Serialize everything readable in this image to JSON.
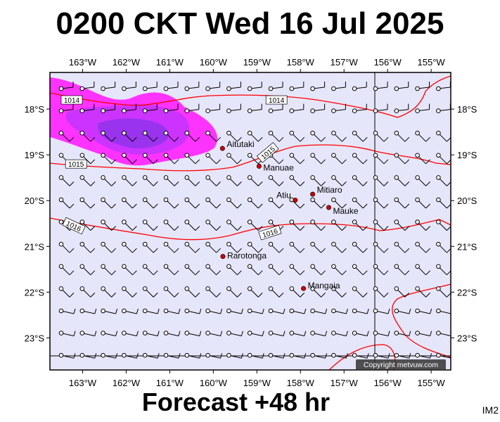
{
  "title": "0200 CKT Wed 16 Jul 2025",
  "forecast_label": "Forecast +48 hr",
  "image_code": "IM2",
  "copyright": "Copyright metvuw.com",
  "colors": {
    "map_background": "#e6e6fa",
    "isobar": "#ff0000",
    "rain_light": "#ff33ff",
    "rain_medium": "#cc33ff",
    "rain_heavy": "#9933ee",
    "island_marker": "#cc0000"
  },
  "longitude_labels": [
    "163°W",
    "162°W",
    "161°W",
    "160°W",
    "159°W",
    "158°W",
    "157°W",
    "156°W",
    "155°W"
  ],
  "latitude_labels": [
    "18°S",
    "19°S",
    "20°S",
    "21°S",
    "22°S",
    "23°S"
  ],
  "reference_lines": {
    "longitude": "156°W",
    "latitude": "23.5°S"
  },
  "islands": [
    {
      "name": "Aitutaki",
      "lon": -159.79,
      "lat": -18.86
    },
    {
      "name": "Manuae",
      "lon": -158.95,
      "lat": -19.25
    },
    {
      "name": "Atiu",
      "lon": -158.12,
      "lat": -19.99
    },
    {
      "name": "Mitiaro",
      "lon": -157.72,
      "lat": -19.86
    },
    {
      "name": "Mauke",
      "lon": -157.35,
      "lat": -20.15
    },
    {
      "name": "Rarotonga",
      "lon": -159.78,
      "lat": -21.22
    },
    {
      "name": "Mangaia",
      "lon": -157.93,
      "lat": -21.92
    }
  ],
  "isobars": [
    {
      "label": "1014",
      "label_positions": [
        {
          "lon": -163.25,
          "lat": -17.8
        },
        {
          "lon": -158.55,
          "lat": -17.8
        }
      ]
    },
    {
      "label": "1015",
      "label_positions": [
        {
          "lon": -163.15,
          "lat": -19.2
        },
        {
          "lon": -158.75,
          "lat": -18.95
        }
      ]
    },
    {
      "label": "1016",
      "label_positions": [
        {
          "lon": -163.2,
          "lat": -20.55
        },
        {
          "lon": -158.7,
          "lat": -20.7
        }
      ]
    }
  ],
  "rain_region": {
    "center_lon": -161.6,
    "center_lat": -18.6,
    "levels": [
      "light",
      "medium",
      "heavy"
    ]
  },
  "wind": {
    "direction": "southeast",
    "station_model": "barbed"
  }
}
